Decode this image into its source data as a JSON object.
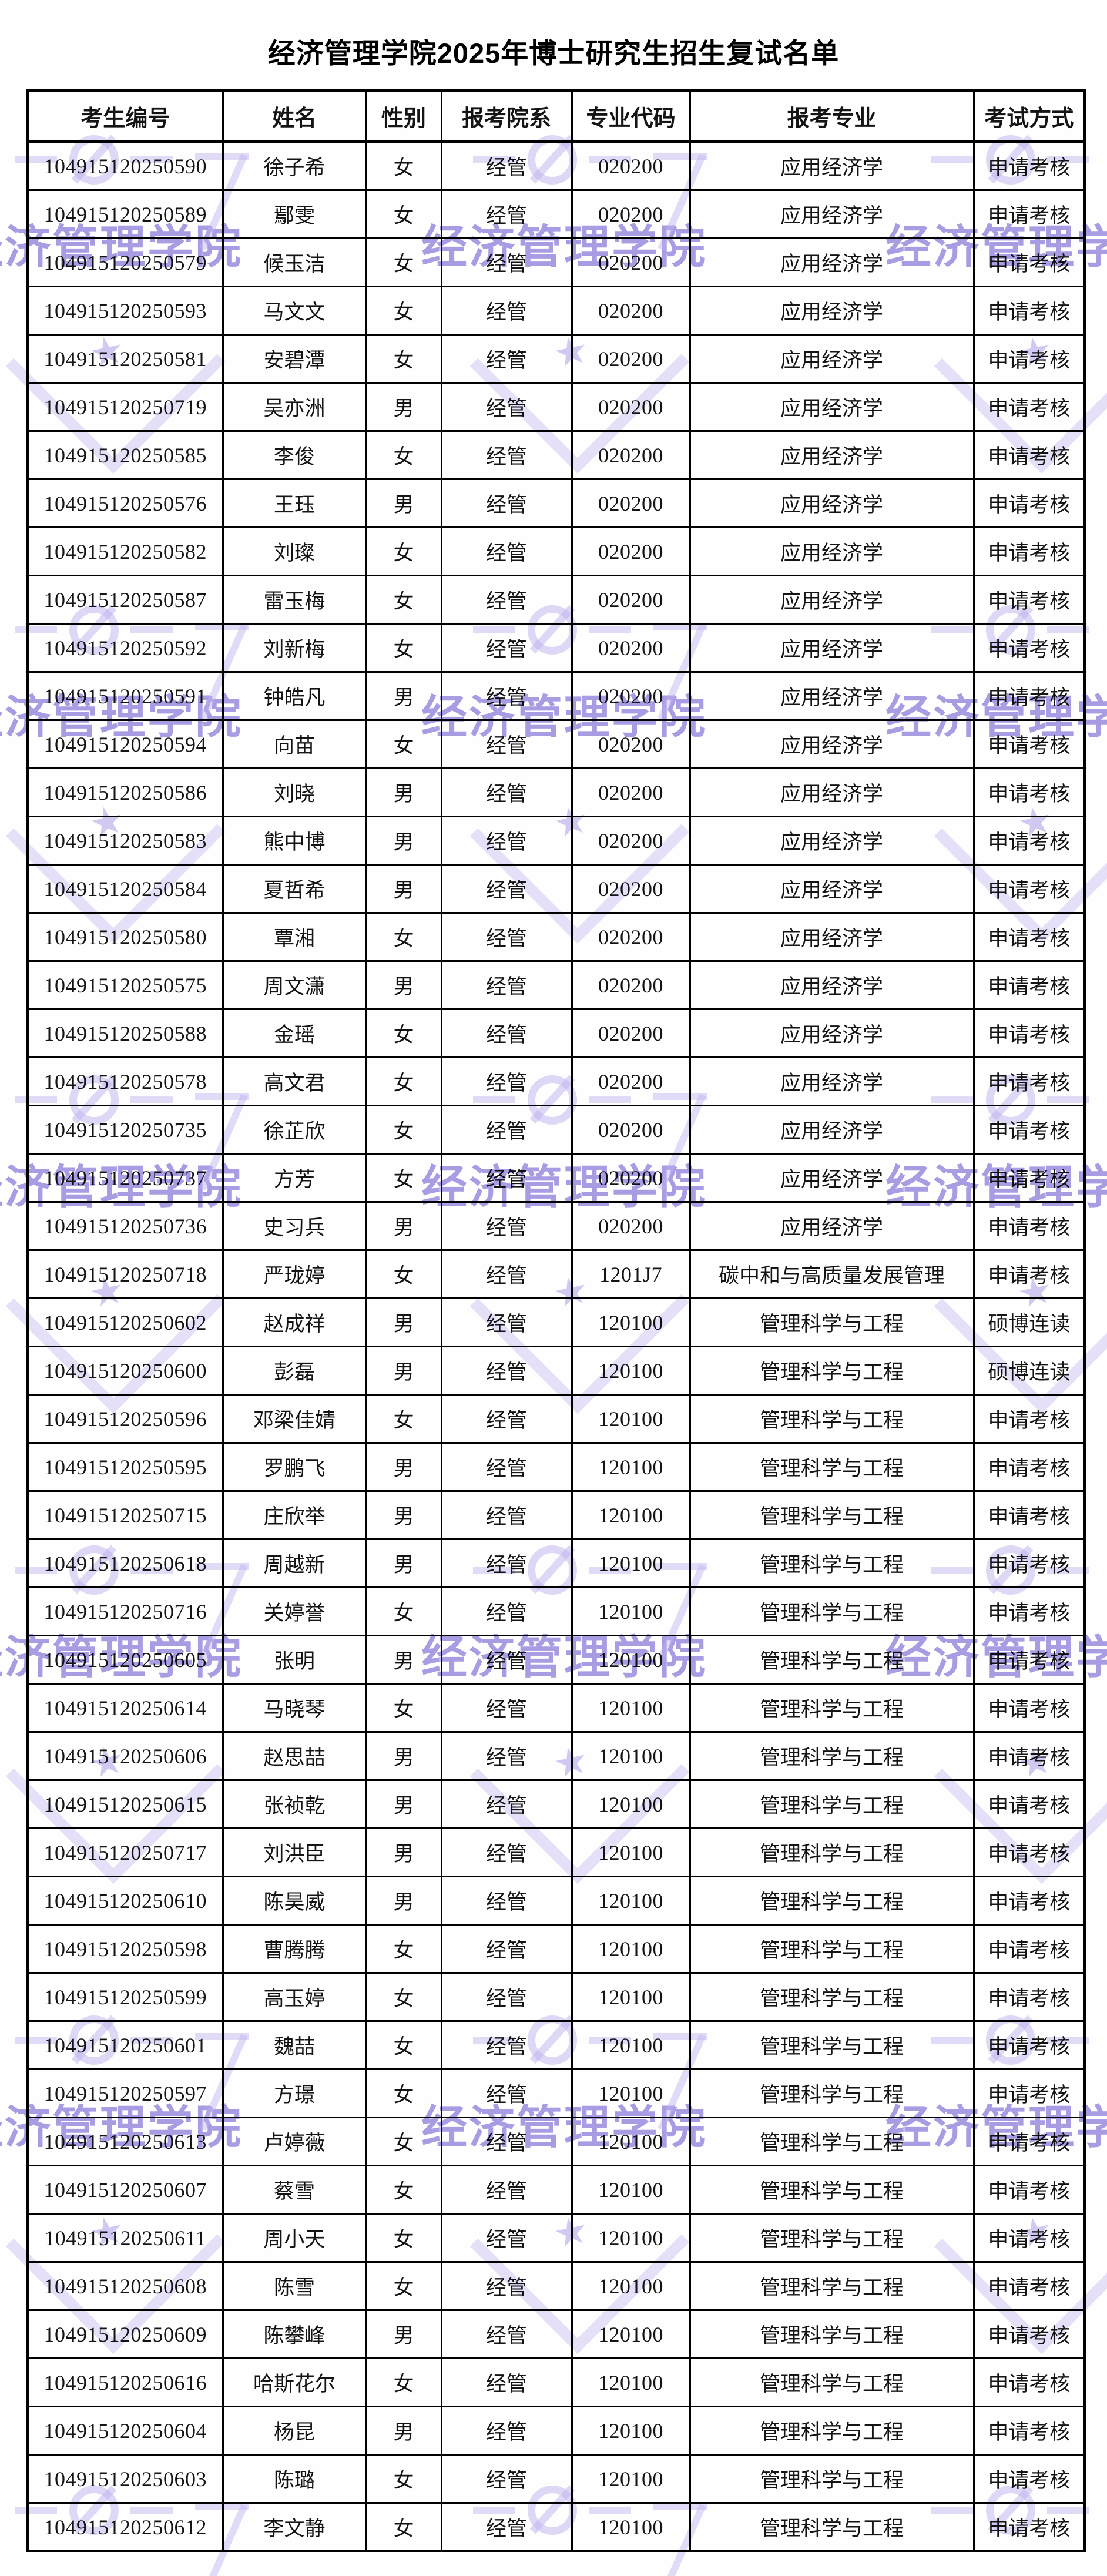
{
  "page": {
    "title": "经济管理学院2025年博士研究生招生复试名单"
  },
  "watermark": {
    "text": "经济管理学院",
    "text_color": "#8b77da",
    "shape_color": "#c1b2f0"
  },
  "table": {
    "headers": [
      "考生编号",
      "姓名",
      "性别",
      "报考院系",
      "专业代码",
      "报考专业",
      "考试方式"
    ],
    "column_keys": [
      "id",
      "name",
      "gender",
      "dept",
      "code",
      "major",
      "method"
    ],
    "rows": [
      [
        "104915120250590",
        "徐子希",
        "女",
        "经管",
        "020200",
        "应用经济学",
        "申请考核"
      ],
      [
        "104915120250589",
        "鄢雯",
        "女",
        "经管",
        "020200",
        "应用经济学",
        "申请考核"
      ],
      [
        "104915120250579",
        "候玉洁",
        "女",
        "经管",
        "020200",
        "应用经济学",
        "申请考核"
      ],
      [
        "104915120250593",
        "马文文",
        "女",
        "经管",
        "020200",
        "应用经济学",
        "申请考核"
      ],
      [
        "104915120250581",
        "安碧潭",
        "女",
        "经管",
        "020200",
        "应用经济学",
        "申请考核"
      ],
      [
        "104915120250719",
        "吴亦洲",
        "男",
        "经管",
        "020200",
        "应用经济学",
        "申请考核"
      ],
      [
        "104915120250585",
        "李俊",
        "女",
        "经管",
        "020200",
        "应用经济学",
        "申请考核"
      ],
      [
        "104915120250576",
        "王珏",
        "男",
        "经管",
        "020200",
        "应用经济学",
        "申请考核"
      ],
      [
        "104915120250582",
        "刘璨",
        "女",
        "经管",
        "020200",
        "应用经济学",
        "申请考核"
      ],
      [
        "104915120250587",
        "雷玉梅",
        "女",
        "经管",
        "020200",
        "应用经济学",
        "申请考核"
      ],
      [
        "104915120250592",
        "刘新梅",
        "女",
        "经管",
        "020200",
        "应用经济学",
        "申请考核"
      ],
      [
        "104915120250591",
        "钟皓凡",
        "男",
        "经管",
        "020200",
        "应用经济学",
        "申请考核"
      ],
      [
        "104915120250594",
        "向苗",
        "女",
        "经管",
        "020200",
        "应用经济学",
        "申请考核"
      ],
      [
        "104915120250586",
        "刘晓",
        "男",
        "经管",
        "020200",
        "应用经济学",
        "申请考核"
      ],
      [
        "104915120250583",
        "熊中博",
        "男",
        "经管",
        "020200",
        "应用经济学",
        "申请考核"
      ],
      [
        "104915120250584",
        "夏哲希",
        "男",
        "经管",
        "020200",
        "应用经济学",
        "申请考核"
      ],
      [
        "104915120250580",
        "覃湘",
        "女",
        "经管",
        "020200",
        "应用经济学",
        "申请考核"
      ],
      [
        "104915120250575",
        "周文潇",
        "男",
        "经管",
        "020200",
        "应用经济学",
        "申请考核"
      ],
      [
        "104915120250588",
        "金瑶",
        "女",
        "经管",
        "020200",
        "应用经济学",
        "申请考核"
      ],
      [
        "104915120250578",
        "高文君",
        "女",
        "经管",
        "020200",
        "应用经济学",
        "申请考核"
      ],
      [
        "104915120250735",
        "徐芷欣",
        "女",
        "经管",
        "020200",
        "应用经济学",
        "申请考核"
      ],
      [
        "104915120250737",
        "方芳",
        "女",
        "经管",
        "020200",
        "应用经济学",
        "申请考核"
      ],
      [
        "104915120250736",
        "史习兵",
        "男",
        "经管",
        "020200",
        "应用经济学",
        "申请考核"
      ],
      [
        "104915120250718",
        "严珑婷",
        "女",
        "经管",
        "1201J7",
        "碳中和与高质量发展管理",
        "申请考核"
      ],
      [
        "104915120250602",
        "赵成祥",
        "男",
        "经管",
        "120100",
        "管理科学与工程",
        "硕博连读"
      ],
      [
        "104915120250600",
        "彭磊",
        "男",
        "经管",
        "120100",
        "管理科学与工程",
        "硕博连读"
      ],
      [
        "104915120250596",
        "邓梁佳婧",
        "女",
        "经管",
        "120100",
        "管理科学与工程",
        "申请考核"
      ],
      [
        "104915120250595",
        "罗鹏飞",
        "男",
        "经管",
        "120100",
        "管理科学与工程",
        "申请考核"
      ],
      [
        "104915120250715",
        "庄欣举",
        "男",
        "经管",
        "120100",
        "管理科学与工程",
        "申请考核"
      ],
      [
        "104915120250618",
        "周越新",
        "男",
        "经管",
        "120100",
        "管理科学与工程",
        "申请考核"
      ],
      [
        "104915120250716",
        "关婷誉",
        "女",
        "经管",
        "120100",
        "管理科学与工程",
        "申请考核"
      ],
      [
        "104915120250605",
        "张明",
        "男",
        "经管",
        "120100",
        "管理科学与工程",
        "申请考核"
      ],
      [
        "104915120250614",
        "马晓琴",
        "女",
        "经管",
        "120100",
        "管理科学与工程",
        "申请考核"
      ],
      [
        "104915120250606",
        "赵思喆",
        "男",
        "经管",
        "120100",
        "管理科学与工程",
        "申请考核"
      ],
      [
        "104915120250615",
        "张祯乾",
        "男",
        "经管",
        "120100",
        "管理科学与工程",
        "申请考核"
      ],
      [
        "104915120250717",
        "刘洪臣",
        "男",
        "经管",
        "120100",
        "管理科学与工程",
        "申请考核"
      ],
      [
        "104915120250610",
        "陈昊威",
        "男",
        "经管",
        "120100",
        "管理科学与工程",
        "申请考核"
      ],
      [
        "104915120250598",
        "曹腾腾",
        "女",
        "经管",
        "120100",
        "管理科学与工程",
        "申请考核"
      ],
      [
        "104915120250599",
        "高玉婷",
        "女",
        "经管",
        "120100",
        "管理科学与工程",
        "申请考核"
      ],
      [
        "104915120250601",
        "魏喆",
        "女",
        "经管",
        "120100",
        "管理科学与工程",
        "申请考核"
      ],
      [
        "104915120250597",
        "方璟",
        "女",
        "经管",
        "120100",
        "管理科学与工程",
        "申请考核"
      ],
      [
        "104915120250613",
        "卢婷薇",
        "女",
        "经管",
        "120100",
        "管理科学与工程",
        "申请考核"
      ],
      [
        "104915120250607",
        "蔡雪",
        "女",
        "经管",
        "120100",
        "管理科学与工程",
        "申请考核"
      ],
      [
        "104915120250611",
        "周小天",
        "女",
        "经管",
        "120100",
        "管理科学与工程",
        "申请考核"
      ],
      [
        "104915120250608",
        "陈雪",
        "女",
        "经管",
        "120100",
        "管理科学与工程",
        "申请考核"
      ],
      [
        "104915120250609",
        "陈攀峰",
        "男",
        "经管",
        "120100",
        "管理科学与工程",
        "申请考核"
      ],
      [
        "104915120250616",
        "哈斯花尔",
        "女",
        "经管",
        "120100",
        "管理科学与工程",
        "申请考核"
      ],
      [
        "104915120250604",
        "杨昆",
        "男",
        "经管",
        "120100",
        "管理科学与工程",
        "申请考核"
      ],
      [
        "104915120250603",
        "陈璐",
        "女",
        "经管",
        "120100",
        "管理科学与工程",
        "申请考核"
      ],
      [
        "104915120250612",
        "李文静",
        "女",
        "经管",
        "120100",
        "管理科学与工程",
        "申请考核"
      ]
    ]
  }
}
